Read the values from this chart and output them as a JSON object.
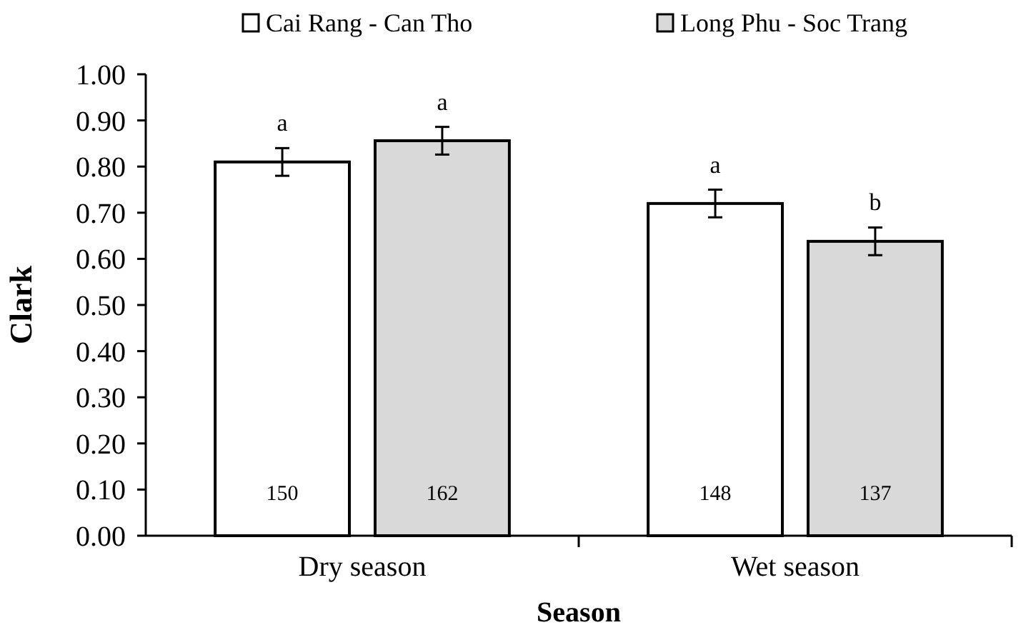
{
  "chart_data": {
    "type": "bar",
    "xlabel": "Season",
    "ylabel": "Clark",
    "categories": [
      "Dry season",
      "Wet season"
    ],
    "series": [
      {
        "name": "Cai Rang - Can Tho",
        "color": "#ffffff",
        "values": [
          0.81,
          0.72
        ],
        "errors": [
          0.03,
          0.03
        ]
      },
      {
        "name": "Long Phu - Soc Trang",
        "color": "#d9d9d9",
        "values": [
          0.856,
          0.638
        ],
        "errors": [
          0.03,
          0.03
        ]
      }
    ],
    "ylim": [
      0,
      1
    ],
    "yticks": [
      {
        "value": 0,
        "label": "0.00"
      },
      {
        "value": 0.1,
        "label": "0.10"
      },
      {
        "value": 0.2,
        "label": "0.20"
      },
      {
        "value": 0.3,
        "label": "0.30"
      },
      {
        "value": 0.4,
        "label": "0.40"
      },
      {
        "value": 0.5,
        "label": "0.50"
      },
      {
        "value": 0.6,
        "label": "0.60"
      },
      {
        "value": 0.7,
        "label": "0.70"
      },
      {
        "value": 0.8,
        "label": "0.80"
      },
      {
        "value": 0.9,
        "label": "0.90"
      },
      {
        "value": 1,
        "label": "1.00"
      }
    ],
    "annotations": [
      "a",
      "a",
      "a",
      "b",
      "150",
      "162",
      "148",
      "137"
    ],
    "legend": "top",
    "grid": false
  }
}
